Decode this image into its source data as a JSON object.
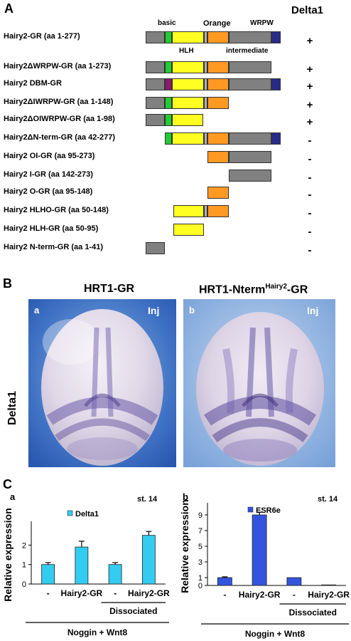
{
  "panelA": {
    "letter": "A",
    "gene_header": "Delta1",
    "domain_labels": {
      "basic": "basic",
      "orange": "Orange",
      "wrpw": "WRPW",
      "hlh": "HLH",
      "intermediate": "intermediate"
    },
    "colors": {
      "gray": "#808080",
      "basic": "#22cc33",
      "dbm": "#8a1a6e",
      "hlh": "#ffff22",
      "orange": "#ff9922",
      "wrpw": "#2a2a8a",
      "spacer": "#b0b0b0"
    },
    "constructs": [
      {
        "name": "Hairy2-GR (aa 1-277)",
        "result": "+"
      },
      {
        "name": "Hairy2ΔWRPW-GR (aa 1-273)",
        "result": "+"
      },
      {
        "name": "Hairy2 DBM-GR",
        "result": "+"
      },
      {
        "name": "Hairy2ΔIWRPW-GR (aa 1-148)",
        "result": "+"
      },
      {
        "name": "Hairy2ΔOIWRPW-GR (aa 1-98)",
        "result": "+"
      },
      {
        "name": "Hairy2ΔN-term-GR (aa 42-277)",
        "result": "-"
      },
      {
        "name": "Hairy2 OI-GR (aa 95-273)",
        "result": "-"
      },
      {
        "name": "Hairy2 I-GR (aa 142-273)",
        "result": "-"
      },
      {
        "name": "Hairy2 O-GR (aa 95-148)",
        "result": "-"
      },
      {
        "name": "Hairy2 HLHO-GR (aa 50-148)",
        "result": "-"
      },
      {
        "name": "Hairy2 HLH-GR (aa 50-95)",
        "result": "-"
      },
      {
        "name": "Hairy2 N-term-GR (aa 1-41)",
        "result": "-"
      }
    ]
  },
  "panelB": {
    "letter": "B",
    "title_left": "HRT1-GR",
    "title_right_main": "HRT1-Nterm",
    "title_right_sup": "Hairy2",
    "title_right_suffix": "-GR",
    "row_label": "Delta1",
    "sub_a": "a",
    "sub_b": "b",
    "inj": "Inj"
  },
  "panelC": {
    "letter": "C",
    "chart_data": [
      {
        "type": "bar",
        "sublabel": "a",
        "stage": "st. 14",
        "legend": "Delta1",
        "ylabel": "Relative expression",
        "ylim": [
          0,
          3
        ],
        "yticks": [
          "0",
          "1",
          "2"
        ],
        "categories": [
          "-",
          "Hairy2-GR",
          "-",
          "Hairy2-GR"
        ],
        "values": [
          1.0,
          1.9,
          1.0,
          2.5
        ],
        "errors": [
          0.1,
          0.3,
          0.1,
          0.2
        ],
        "group_label": "Dissociated",
        "footer": "Noggin + Wnt8",
        "color": "#33ccf0"
      },
      {
        "type": "bar",
        "sublabel": "b",
        "stage": "st. 14",
        "legend": "ESR6e",
        "ylabel": "Relative expression",
        "ylim": [
          0,
          10
        ],
        "yticks": [
          "0",
          "1",
          "3",
          "5",
          "7",
          "9"
        ],
        "ytick_values": [
          0,
          1,
          3,
          5,
          7,
          9
        ],
        "categories": [
          "-",
          "Hairy2-GR",
          "-",
          "Hairy2-GR"
        ],
        "values": [
          1.0,
          9.0,
          1.0,
          0.05
        ],
        "errors": [
          0.1,
          0.35,
          0.0,
          0.0
        ],
        "group_label": "Dissociated",
        "footer": "Noggin + Wnt8",
        "color": "#3355dd"
      }
    ]
  }
}
